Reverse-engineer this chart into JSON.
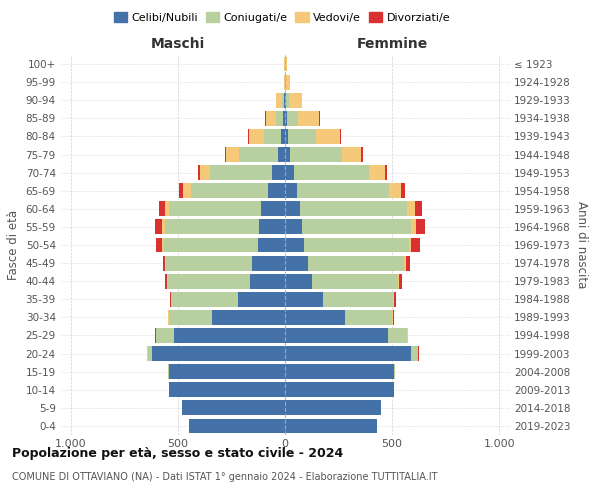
{
  "age_groups": [
    "0-4",
    "5-9",
    "10-14",
    "15-19",
    "20-24",
    "25-29",
    "30-34",
    "35-39",
    "40-44",
    "45-49",
    "50-54",
    "55-59",
    "60-64",
    "65-69",
    "70-74",
    "75-79",
    "80-84",
    "85-89",
    "90-94",
    "95-99",
    "100+"
  ],
  "birth_years": [
    "2019-2023",
    "2014-2018",
    "2009-2013",
    "2004-2008",
    "1999-2003",
    "1994-1998",
    "1989-1993",
    "1984-1988",
    "1979-1983",
    "1974-1978",
    "1969-1973",
    "1964-1968",
    "1959-1963",
    "1954-1958",
    "1949-1953",
    "1944-1948",
    "1939-1943",
    "1934-1938",
    "1929-1933",
    "1924-1928",
    "≤ 1923"
  ],
  "colors": {
    "celibe": "#4472a8",
    "coniugato": "#b8cfa0",
    "vedovo": "#f5c87a",
    "divorziato": "#d93030"
  },
  "maschi": {
    "celibe": [
      450,
      480,
      540,
      540,
      620,
      520,
      340,
      220,
      165,
      155,
      125,
      120,
      110,
      80,
      60,
      35,
      20,
      10,
      5,
      2,
      2
    ],
    "coniugato": [
      0,
      0,
      0,
      5,
      20,
      80,
      200,
      310,
      380,
      400,
      440,
      440,
      430,
      360,
      290,
      180,
      80,
      30,
      10,
      0,
      0
    ],
    "vedovo": [
      0,
      0,
      0,
      0,
      2,
      3,
      5,
      2,
      5,
      5,
      10,
      15,
      20,
      35,
      45,
      60,
      70,
      50,
      25,
      5,
      2
    ],
    "divorziato": [
      0,
      0,
      0,
      0,
      2,
      2,
      2,
      5,
      10,
      10,
      25,
      30,
      30,
      20,
      10,
      5,
      5,
      2,
      0,
      0,
      0
    ]
  },
  "femmine": {
    "celibe": [
      430,
      450,
      510,
      510,
      590,
      480,
      280,
      175,
      125,
      105,
      90,
      80,
      70,
      55,
      40,
      25,
      15,
      10,
      5,
      2,
      2
    ],
    "coniugato": [
      0,
      0,
      0,
      5,
      30,
      90,
      220,
      330,
      400,
      450,
      490,
      510,
      500,
      430,
      350,
      240,
      130,
      50,
      15,
      2,
      0
    ],
    "vedovo": [
      0,
      0,
      0,
      0,
      2,
      2,
      3,
      3,
      5,
      8,
      10,
      20,
      35,
      55,
      75,
      90,
      110,
      100,
      60,
      20,
      5
    ],
    "divorziato": [
      0,
      0,
      0,
      0,
      2,
      2,
      4,
      8,
      15,
      20,
      40,
      45,
      35,
      20,
      12,
      8,
      5,
      2,
      0,
      0,
      0
    ]
  },
  "title": "Popolazione per età, sesso e stato civile - 2024",
  "subtitle": "COMUNE DI OTTAVIANO (NA) - Dati ISTAT 1° gennaio 2024 - Elaborazione TUTTITALIA.IT",
  "xlabel_left": "Maschi",
  "xlabel_right": "Femmine",
  "ylabel_left": "Fasce di età",
  "ylabel_right": "Anni di nascita",
  "xlim": 1050,
  "xticks": [
    -1000,
    -500,
    0,
    500,
    1000
  ],
  "xticklabels": [
    "1.000",
    "500",
    "0",
    "500",
    "1.000"
  ],
  "background_color": "#ffffff",
  "grid_color": "#cccccc"
}
